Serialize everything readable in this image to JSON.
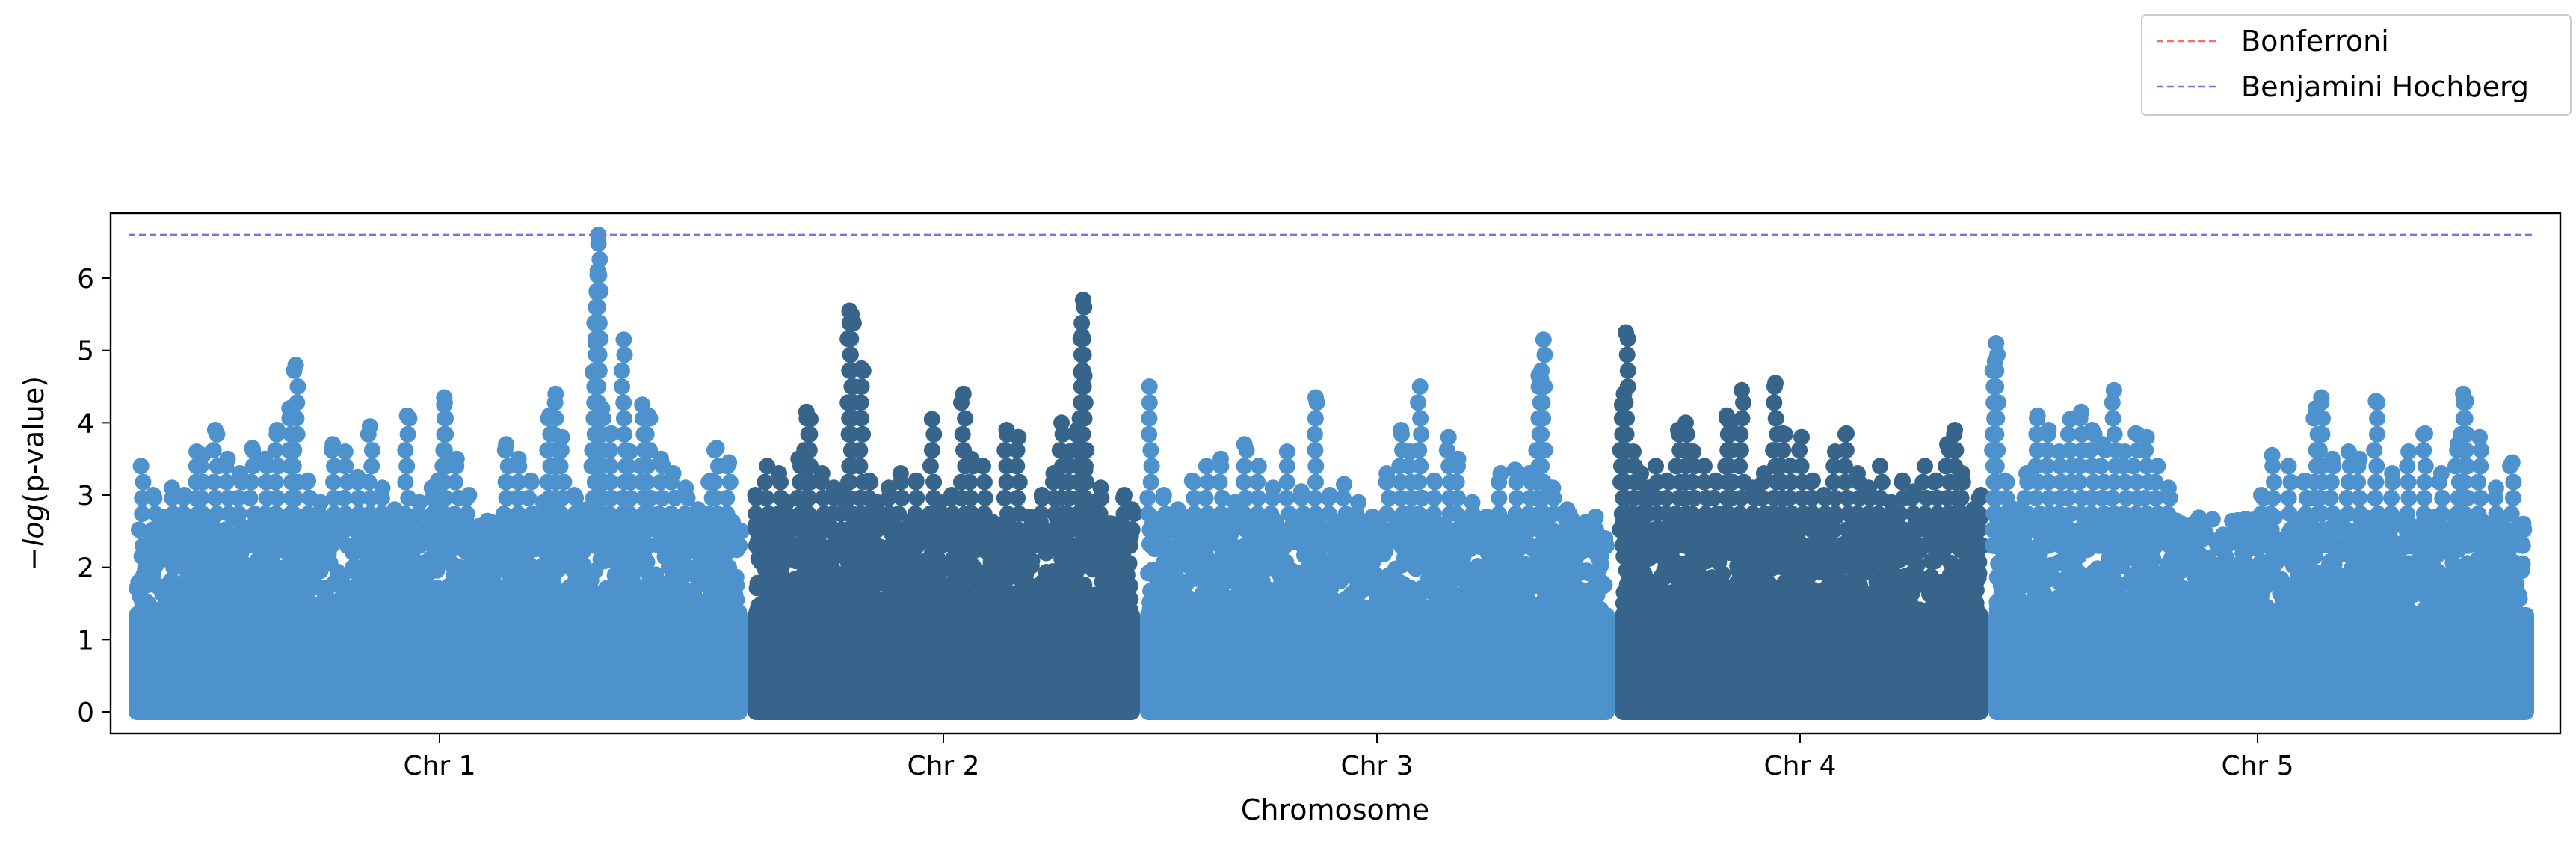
{
  "chart_data": {
    "type": "scatter",
    "subtype": "manhattan",
    "title": "",
    "xlabel": "Chromosome",
    "ylabel": "-log(p-value)",
    "ylabel_parts": {
      "minus": "−",
      "italic": "log",
      "rest": "(p-value)"
    },
    "ylim": [
      -0.3,
      6.9
    ],
    "yticks": [
      0,
      1,
      2,
      3,
      4,
      5,
      6
    ],
    "colors": {
      "light": "#4d92cd",
      "dark": "#36648b"
    },
    "chromosomes": [
      {
        "label": "Chr 1",
        "color": "light",
        "top_points": [
          [
            0.02,
            3.4
          ],
          [
            0.04,
            3.0
          ],
          [
            0.06,
            2.7
          ],
          [
            0.07,
            3.1
          ],
          [
            0.09,
            3.0
          ],
          [
            0.11,
            3.6
          ],
          [
            0.12,
            3.55
          ],
          [
            0.14,
            3.9
          ],
          [
            0.16,
            3.5
          ],
          [
            0.18,
            3.3
          ],
          [
            0.2,
            3.65
          ],
          [
            0.22,
            3.5
          ],
          [
            0.24,
            3.9
          ],
          [
            0.26,
            4.2
          ],
          [
            0.27,
            4.8
          ],
          [
            0.29,
            3.2
          ],
          [
            0.31,
            2.9
          ],
          [
            0.33,
            3.7
          ],
          [
            0.35,
            3.6
          ],
          [
            0.37,
            3.25
          ],
          [
            0.39,
            3.95
          ],
          [
            0.41,
            3.1
          ],
          [
            0.43,
            2.8
          ],
          [
            0.45,
            4.1
          ],
          [
            0.47,
            2.9
          ],
          [
            0.49,
            3.1
          ],
          [
            0.5,
            3.2
          ],
          [
            0.51,
            4.25
          ],
          [
            0.51,
            4.35
          ],
          [
            0.53,
            3.5
          ],
          [
            0.55,
            3.0
          ],
          [
            0.57,
            1.3
          ],
          [
            0.59,
            2.6
          ],
          [
            0.61,
            3.7
          ],
          [
            0.63,
            3.5
          ],
          [
            0.65,
            3.2
          ],
          [
            0.67,
            2.9
          ],
          [
            0.68,
            4.1
          ],
          [
            0.69,
            4.4
          ],
          [
            0.7,
            3.8
          ],
          [
            0.72,
            3.0
          ],
          [
            0.74,
            2.8
          ],
          [
            0.75,
            4.7
          ],
          [
            0.755,
            5.1
          ],
          [
            0.756,
            5.4
          ],
          [
            0.757,
            5.8
          ],
          [
            0.758,
            6.1
          ],
          [
            0.759,
            6.6
          ],
          [
            0.765,
            4.2
          ],
          [
            0.78,
            3.85
          ],
          [
            0.8,
            5.15
          ],
          [
            0.81,
            3.6
          ],
          [
            0.83,
            4.25
          ],
          [
            0.84,
            4.1
          ],
          [
            0.86,
            3.5
          ],
          [
            0.88,
            3.3
          ],
          [
            0.9,
            3.1
          ],
          [
            0.92,
            2.8
          ],
          [
            0.94,
            3.2
          ],
          [
            0.95,
            3.65
          ],
          [
            0.97,
            3.45
          ],
          [
            0.99,
            2.5
          ]
        ]
      },
      {
        "label": "Chr 2",
        "color": "dark",
        "top_points": [
          [
            0.02,
            3.0
          ],
          [
            0.05,
            3.4
          ],
          [
            0.08,
            3.3
          ],
          [
            0.1,
            2.9
          ],
          [
            0.13,
            3.5
          ],
          [
            0.15,
            4.15
          ],
          [
            0.16,
            4.05
          ],
          [
            0.19,
            3.3
          ],
          [
            0.22,
            3.1
          ],
          [
            0.24,
            3.0
          ],
          [
            0.26,
            5.55
          ],
          [
            0.265,
            5.5
          ],
          [
            0.29,
            4.75
          ],
          [
            0.31,
            3.2
          ],
          [
            0.33,
            2.9
          ],
          [
            0.36,
            3.1
          ],
          [
            0.39,
            3.3
          ],
          [
            0.43,
            3.2
          ],
          [
            0.47,
            4.05
          ],
          [
            0.49,
            2.9
          ],
          [
            0.52,
            3.0
          ],
          [
            0.55,
            4.4
          ],
          [
            0.57,
            3.5
          ],
          [
            0.6,
            3.4
          ],
          [
            0.63,
            2.5
          ],
          [
            0.66,
            3.9
          ],
          [
            0.69,
            3.8
          ],
          [
            0.72,
            2.7
          ],
          [
            0.75,
            3.0
          ],
          [
            0.78,
            3.3
          ],
          [
            0.8,
            4.0
          ],
          [
            0.82,
            3.6
          ],
          [
            0.84,
            3.9
          ],
          [
            0.85,
            4.7
          ],
          [
            0.852,
            5.2
          ],
          [
            0.855,
            5.7
          ],
          [
            0.858,
            4.65
          ],
          [
            0.86,
            3.35
          ],
          [
            0.88,
            2.9
          ],
          [
            0.9,
            3.1
          ],
          [
            0.93,
            2.6
          ],
          [
            0.96,
            3.0
          ],
          [
            0.98,
            2.8
          ]
        ]
      },
      {
        "label": "Chr 3",
        "color": "light",
        "top_points": [
          [
            0.02,
            4.5
          ],
          [
            0.05,
            3.0
          ],
          [
            0.08,
            2.8
          ],
          [
            0.11,
            3.2
          ],
          [
            0.14,
            3.4
          ],
          [
            0.17,
            3.5
          ],
          [
            0.2,
            2.9
          ],
          [
            0.22,
            3.7
          ],
          [
            0.25,
            3.4
          ],
          [
            0.28,
            3.1
          ],
          [
            0.31,
            3.6
          ],
          [
            0.34,
            3.05
          ],
          [
            0.37,
            4.35
          ],
          [
            0.4,
            3.0
          ],
          [
            0.43,
            3.15
          ],
          [
            0.46,
            2.9
          ],
          [
            0.49,
            2.7
          ],
          [
            0.52,
            3.3
          ],
          [
            0.55,
            3.9
          ],
          [
            0.57,
            3.6
          ],
          [
            0.59,
            4.5
          ],
          [
            0.62,
            3.2
          ],
          [
            0.65,
            3.8
          ],
          [
            0.67,
            3.5
          ],
          [
            0.7,
            2.9
          ],
          [
            0.73,
            2.7
          ],
          [
            0.76,
            3.3
          ],
          [
            0.79,
            3.35
          ],
          [
            0.82,
            3.3
          ],
          [
            0.84,
            4.65
          ],
          [
            0.845,
            4.6
          ],
          [
            0.85,
            5.15
          ],
          [
            0.87,
            3.1
          ],
          [
            0.9,
            2.8
          ],
          [
            0.93,
            2.5
          ],
          [
            0.96,
            2.7
          ],
          [
            0.98,
            2.4
          ]
        ]
      },
      {
        "label": "Chr 4",
        "color": "dark",
        "top_points": [
          [
            0.02,
            4.25
          ],
          [
            0.025,
            4.4
          ],
          [
            0.03,
            5.25
          ],
          [
            0.05,
            3.6
          ],
          [
            0.07,
            3.3
          ],
          [
            0.09,
            3.1
          ],
          [
            0.11,
            3.4
          ],
          [
            0.14,
            3.2
          ],
          [
            0.17,
            3.9
          ],
          [
            0.19,
            4.0
          ],
          [
            0.21,
            3.6
          ],
          [
            0.24,
            3.4
          ],
          [
            0.27,
            3.2
          ],
          [
            0.3,
            4.1
          ],
          [
            0.31,
            4.0
          ],
          [
            0.34,
            4.45
          ],
          [
            0.37,
            3.1
          ],
          [
            0.4,
            3.3
          ],
          [
            0.43,
            4.55
          ],
          [
            0.45,
            3.85
          ],
          [
            0.47,
            3.4
          ],
          [
            0.5,
            3.8
          ],
          [
            0.53,
            3.2
          ],
          [
            0.56,
            3.0
          ],
          [
            0.59,
            3.6
          ],
          [
            0.62,
            3.85
          ],
          [
            0.65,
            3.3
          ],
          [
            0.68,
            3.1
          ],
          [
            0.71,
            3.4
          ],
          [
            0.74,
            2.9
          ],
          [
            0.77,
            3.2
          ],
          [
            0.8,
            3.05
          ],
          [
            0.83,
            3.4
          ],
          [
            0.86,
            3.2
          ],
          [
            0.89,
            3.7
          ],
          [
            0.91,
            3.9
          ],
          [
            0.93,
            3.3
          ],
          [
            0.96,
            2.8
          ],
          [
            0.98,
            3.0
          ]
        ]
      },
      {
        "label": "Chr 5",
        "color": "light",
        "top_points": [
          [
            0.01,
            4.5
          ],
          [
            0.012,
            4.85
          ],
          [
            0.014,
            5.1
          ],
          [
            0.03,
            3.2
          ],
          [
            0.05,
            2.8
          ],
          [
            0.07,
            3.3
          ],
          [
            0.09,
            4.1
          ],
          [
            0.11,
            3.9
          ],
          [
            0.13,
            3.6
          ],
          [
            0.15,
            4.05
          ],
          [
            0.17,
            4.15
          ],
          [
            0.19,
            3.9
          ],
          [
            0.21,
            3.7
          ],
          [
            0.23,
            4.45
          ],
          [
            0.25,
            3.6
          ],
          [
            0.27,
            3.85
          ],
          [
            0.29,
            3.8
          ],
          [
            0.31,
            3.4
          ],
          [
            0.33,
            3.1
          ],
          [
            0.35,
            2.5
          ],
          [
            0.37,
            2.4
          ],
          [
            0.39,
            2.0
          ],
          [
            0.41,
            1.75
          ],
          [
            0.43,
            2.45
          ],
          [
            0.45,
            1.9
          ],
          [
            0.47,
            2.2
          ],
          [
            0.5,
            3.0
          ],
          [
            0.52,
            3.55
          ],
          [
            0.55,
            3.4
          ],
          [
            0.58,
            3.2
          ],
          [
            0.6,
            4.2
          ],
          [
            0.61,
            4.35
          ],
          [
            0.63,
            3.5
          ],
          [
            0.66,
            3.6
          ],
          [
            0.68,
            3.5
          ],
          [
            0.71,
            4.3
          ],
          [
            0.74,
            3.3
          ],
          [
            0.77,
            3.6
          ],
          [
            0.8,
            3.85
          ],
          [
            0.83,
            3.3
          ],
          [
            0.86,
            3.7
          ],
          [
            0.87,
            4.4
          ],
          [
            0.875,
            4.3
          ],
          [
            0.9,
            3.8
          ],
          [
            0.93,
            3.1
          ],
          [
            0.96,
            3.45
          ],
          [
            0.98,
            2.6
          ]
        ]
      }
    ],
    "thresholds": [
      {
        "name": "Bonferroni",
        "value": 6.6,
        "color": "#ff6b6b"
      },
      {
        "name": "Benjamini Hochberg",
        "value": 6.6,
        "color": "#7b6ee6"
      }
    ],
    "grid": false,
    "legend_position": "top-right, outside axes"
  }
}
